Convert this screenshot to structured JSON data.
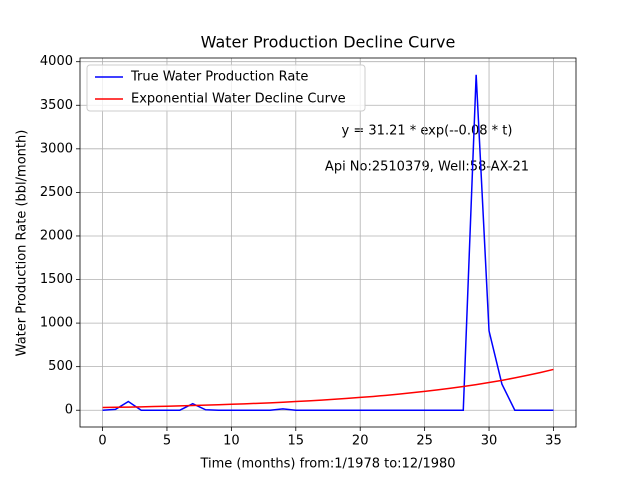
{
  "chart_data": {
    "type": "line",
    "title": "Water Production Decline Curve",
    "xlabel": "Time (months) from:1/1978 to:12/1980",
    "ylabel": "Water Production Rate (bbl/month)",
    "annotations": [
      "y = 31.21 * exp(--0.08 * t)",
      "Api No:2510379, Well:58-AX-21"
    ],
    "x": [
      0,
      1,
      2,
      3,
      4,
      5,
      6,
      7,
      8,
      9,
      10,
      11,
      12,
      13,
      14,
      15,
      16,
      17,
      18,
      19,
      20,
      21,
      22,
      23,
      24,
      25,
      26,
      27,
      28,
      29,
      30,
      31,
      32,
      33,
      34,
      35
    ],
    "series": [
      {
        "name": "True Water Production Rate",
        "color": "#0000ff",
        "values": [
          0,
          10,
          100,
          0,
          0,
          0,
          0,
          75,
          5,
          0,
          0,
          0,
          0,
          0,
          15,
          0,
          0,
          0,
          0,
          0,
          0,
          0,
          0,
          0,
          0,
          0,
          0,
          0,
          0,
          3850,
          910,
          300,
          0,
          0,
          0,
          0
        ]
      },
      {
        "name": "Exponential Water Decline Curve",
        "color": "#ff0000",
        "values": [
          31,
          34,
          36,
          39,
          43,
          46,
          50,
          54,
          58,
          63,
          68,
          73,
          79,
          85,
          92,
          100,
          108,
          116,
          126,
          136,
          147,
          158,
          171,
          185,
          200,
          216,
          233,
          252,
          272,
          294,
          318,
          343,
          371,
          401,
          433,
          468
        ]
      }
    ],
    "xlim": [
      -1.75,
      36.75
    ],
    "xticks": [
      0,
      5,
      10,
      15,
      20,
      25,
      30,
      35
    ],
    "ylim": [
      -192.5,
      4042.5
    ],
    "yticks": [
      0,
      500,
      1000,
      1500,
      2000,
      2500,
      3000,
      3500,
      4000
    ],
    "grid": true,
    "legend": "upper left"
  }
}
